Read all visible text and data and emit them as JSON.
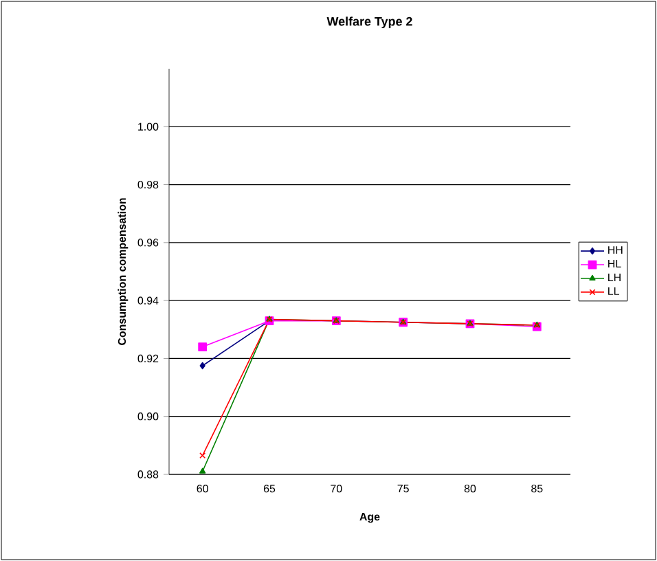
{
  "chart_data": {
    "type": "line",
    "title": "Welfare Type 2",
    "xlabel": "Age",
    "ylabel": "Consumption compensation",
    "categories": [
      "60",
      "65",
      "70",
      "75",
      "80",
      "85"
    ],
    "series": [
      {
        "name": "HH",
        "color": "#000080",
        "marker": "diamond",
        "values": [
          0.9175,
          0.933,
          null,
          null,
          null,
          null
        ]
      },
      {
        "name": "HL",
        "color": "#ff00ff",
        "marker": "square",
        "values": [
          0.924,
          0.933,
          0.933,
          0.9325,
          0.932,
          0.931
        ]
      },
      {
        "name": "LH",
        "color": "#008000",
        "marker": "triangle",
        "values": [
          0.881,
          0.9335,
          0.933,
          0.9325,
          0.932,
          0.9315
        ]
      },
      {
        "name": "LL",
        "color": "#ff0000",
        "marker": "cross",
        "values": [
          0.8865,
          0.9335,
          0.933,
          0.9325,
          0.932,
          0.9315
        ]
      }
    ],
    "ylim": [
      0.88,
      1.02
    ],
    "yticks": [
      {
        "value": 0.88,
        "label": "0.88"
      },
      {
        "value": 0.9,
        "label": "0.90"
      },
      {
        "value": 0.92,
        "label": "0.92"
      },
      {
        "value": 0.94,
        "label": "0.94"
      },
      {
        "value": 0.96,
        "label": "0.96"
      },
      {
        "value": 0.98,
        "label": "0.98"
      },
      {
        "value": 1,
        "label": "1.00"
      }
    ],
    "grid": "y",
    "legend": "right",
    "line_style": "solid"
  }
}
